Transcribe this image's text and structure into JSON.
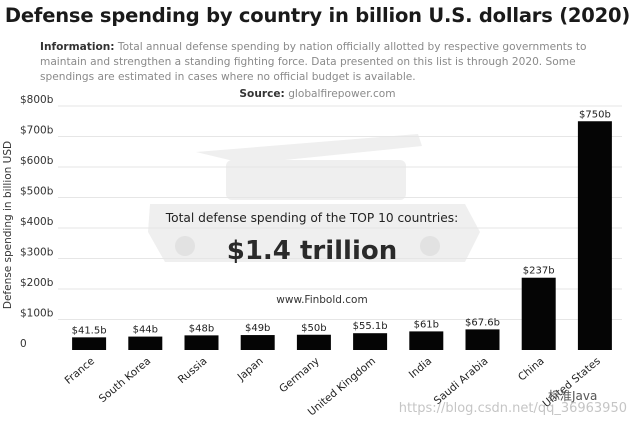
{
  "title": "Defense spending by country in billion U.S. dollars (2020)",
  "info": {
    "label": "Information:",
    "text": "Total annual defense spending by nation officially allotted by respective governments to maintain and strengthen a standing fighting force. Data presented on this list is through 2020. Some spendings are estimated in cases where no official budget is available."
  },
  "source": {
    "label": "Source:",
    "text": "globalfirepower.com"
  },
  "annotation": {
    "text": "Total defense spending of the TOP 10 countries:",
    "total": "$1.4 trillion",
    "site": "www.Finbold.com"
  },
  "watermark": {
    "brand": "标准Java",
    "url": "https://blog.csdn.net/qq_36963950"
  },
  "chart_data": {
    "type": "bar",
    "ylabel": "Defense spending in billion USD",
    "ylim": [
      0,
      800
    ],
    "yticks": [
      0,
      100,
      200,
      300,
      400,
      500,
      600,
      700,
      800
    ],
    "ytick_labels": [
      "0",
      "$100b",
      "$200b",
      "$300b",
      "$400b",
      "$500b",
      "$600b",
      "$700b",
      "$800b"
    ],
    "categories": [
      "France",
      "South Korea",
      "Russia",
      "Japan",
      "Germany",
      "United Kingdom",
      "India",
      "Saudi Arabia",
      "China",
      "United States"
    ],
    "values": [
      41.5,
      44,
      48,
      49,
      50,
      55.1,
      61,
      67.6,
      237,
      750
    ],
    "value_labels": [
      "$41.5b",
      "$44b",
      "$48b",
      "$49b",
      "$50b",
      "$55.1b",
      "$61b",
      "$67.6b",
      "$237b",
      "$750b"
    ],
    "bar_color": "#050505",
    "grid": true,
    "grid_color": "#e6e6e6"
  }
}
